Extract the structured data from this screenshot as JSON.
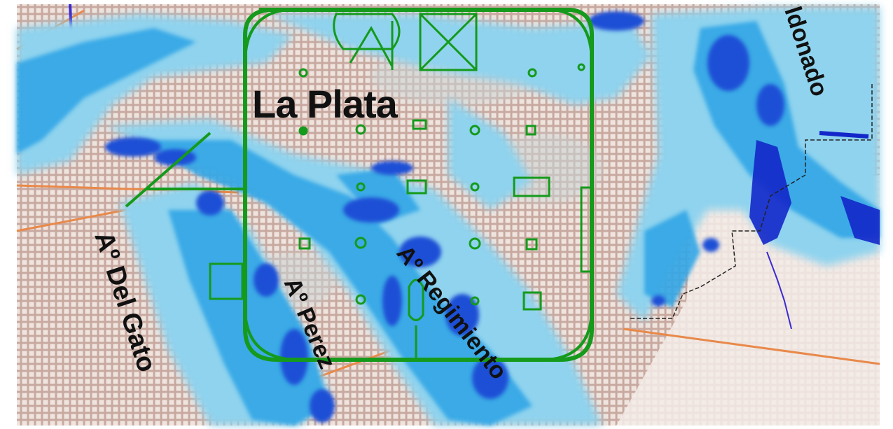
{
  "map": {
    "title": "La Plata",
    "streams": [
      {
        "label": "Aº Del Gato"
      },
      {
        "label": "Aº Perez"
      },
      {
        "label": "Aº Regimiento"
      },
      {
        "label": "ldonado"
      }
    ]
  },
  "colors": {
    "background": "#d9c6bf",
    "street_block": "#e8dcd4",
    "street_line": "#bfa59b",
    "flood_light": "#8fd3ee",
    "flood_mid": "#31a6e6",
    "flood_deep": "#1d4fd6",
    "flood_deepest": "#1327c9",
    "city_outline": "#159a1c",
    "road_orange": "#e8894a",
    "boundary_black": "#222222"
  }
}
